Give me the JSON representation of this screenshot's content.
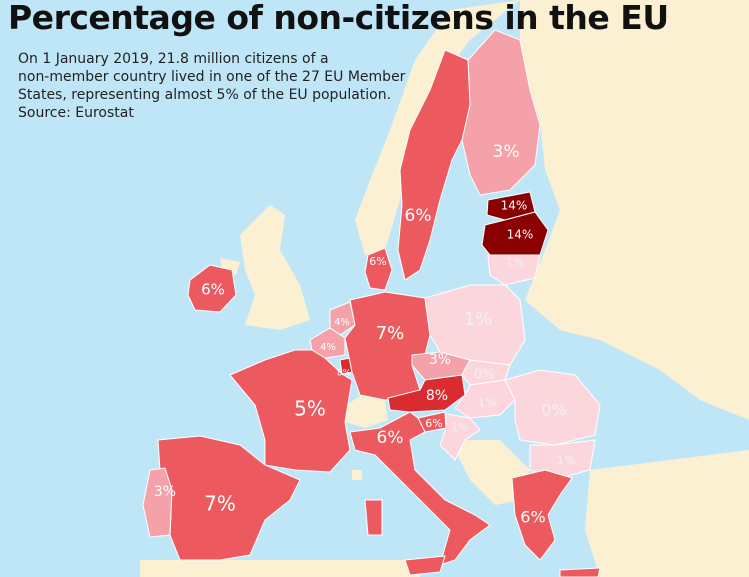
{
  "title": "Percentage of non-citizens in the EU",
  "subtitle_lines": [
    "On 1 January 2019, 21.8 million citizens of a",
    "non-member country lived in one of the 27 EU Member",
    "States, representing almost 5% of the EU population.",
    "Source: Eurostat"
  ],
  "colors": {
    "sea": "#bfe6f7",
    "non_eu_land": "#fbf1d2",
    "scale_0_1": "#fbd6dc",
    "scale_3_4": "#f5a1aa",
    "scale_5_7": "#ec5a5f",
    "scale_8": "#d92b30",
    "scale_14": "#8b0000"
  },
  "regions": [
    {
      "name": "Sweden",
      "label": "6%"
    },
    {
      "name": "Finland",
      "label": "3%"
    },
    {
      "name": "Estonia",
      "label": "14%"
    },
    {
      "name": "Latvia",
      "label": "14%"
    },
    {
      "name": "Lithuania",
      "label": "1%"
    },
    {
      "name": "Denmark",
      "label": "6%"
    },
    {
      "name": "Ireland",
      "label": "6%"
    },
    {
      "name": "Netherlands",
      "label": "4%"
    },
    {
      "name": "Belgium",
      "label": "4%"
    },
    {
      "name": "Luxembourg",
      "label": "8%"
    },
    {
      "name": "Germany",
      "label": "7%"
    },
    {
      "name": "Poland",
      "label": "1%"
    },
    {
      "name": "Czechia",
      "label": "3%"
    },
    {
      "name": "Slovakia",
      "label": "0%"
    },
    {
      "name": "Austria",
      "label": "8%"
    },
    {
      "name": "Hungary",
      "label": "1%"
    },
    {
      "name": "Romania",
      "label": "0%"
    },
    {
      "name": "Bulgaria",
      "label": "1%"
    },
    {
      "name": "Slovenia",
      "label": "6%"
    },
    {
      "name": "Croatia",
      "label": "1%"
    },
    {
      "name": "France",
      "label": "5%"
    },
    {
      "name": "Italy",
      "label": "6%"
    },
    {
      "name": "Spain",
      "label": "7%"
    },
    {
      "name": "Portugal",
      "label": "3%"
    },
    {
      "name": "Greece",
      "label": "6%"
    }
  ]
}
